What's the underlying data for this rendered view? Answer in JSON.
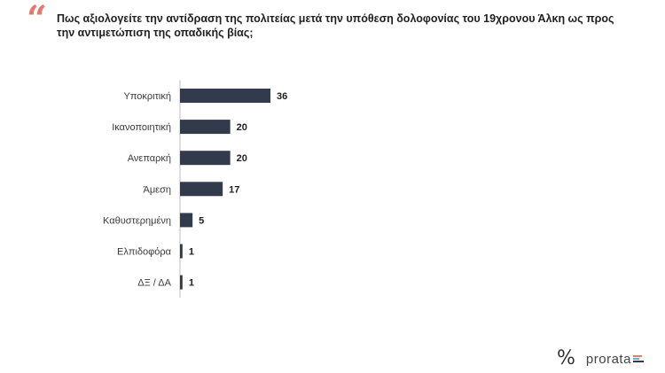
{
  "question": "Πως αξιολογείτε την αντίδραση της πολιτείας μετά την υπόθεση δολοφονίας του 19χρονου Άλκη ως προς την αντιμετώπιση της οπαδικής βίας;",
  "brand": {
    "symbol": "%",
    "name": "prorata",
    "colors": [
      "#e07b73",
      "#6ab0de",
      "#323b4c"
    ]
  },
  "colors": {
    "bar": "#323b4c",
    "accent": "#e07b73"
  },
  "chart_data": {
    "type": "bar",
    "orientation": "horizontal",
    "categories": [
      "Υποκριτική",
      "Ικανοποιητική",
      "Ανεπαρκή",
      "Άμεση",
      "Καθυστερημένη",
      "Ελπιδοφόρα",
      "ΔΞ / ΔΑ"
    ],
    "values": [
      36,
      20,
      20,
      17,
      5,
      1,
      1
    ],
    "xlim": [
      0,
      36
    ],
    "grid": false,
    "legend": "none",
    "data_labels": true
  }
}
